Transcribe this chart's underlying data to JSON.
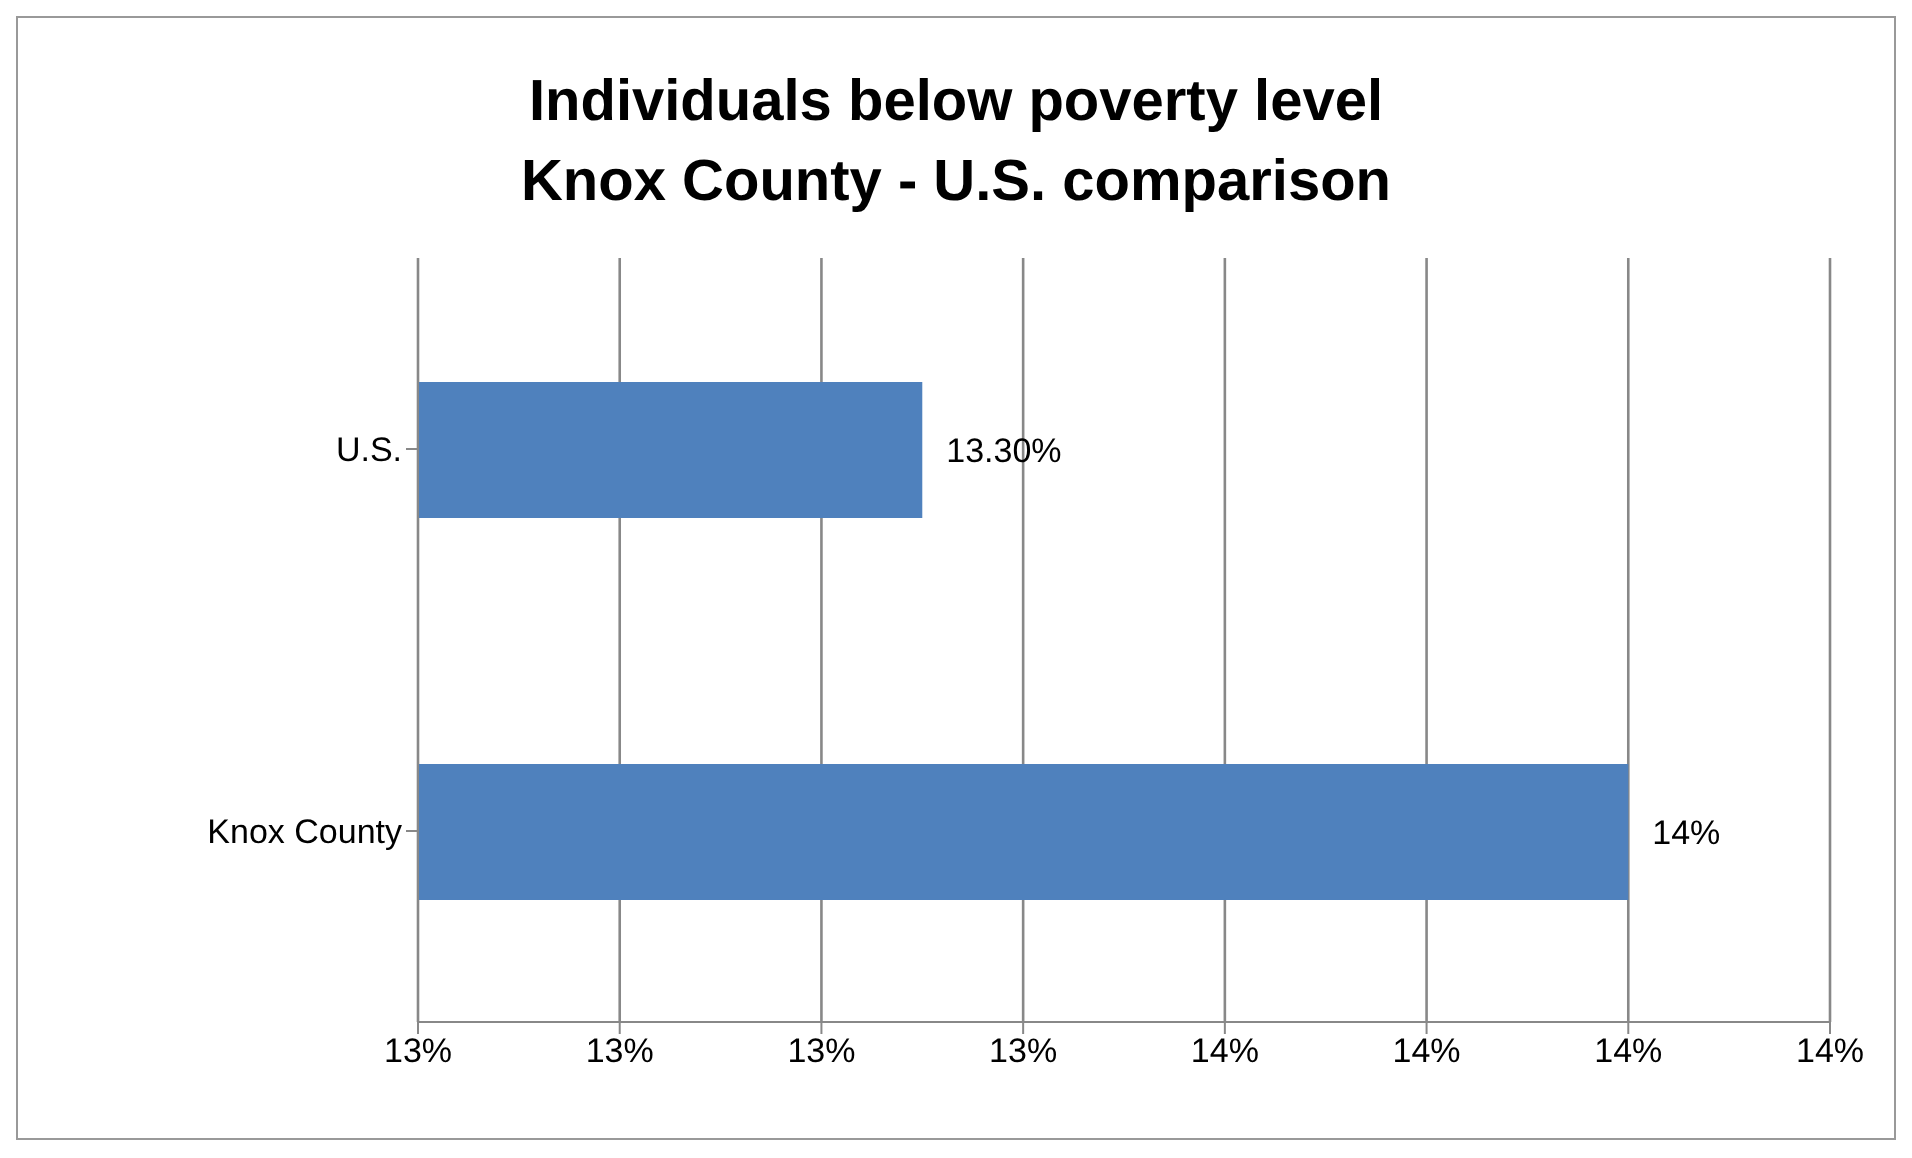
{
  "chart_data": {
    "type": "bar",
    "orientation": "horizontal",
    "title": "Individuals below poverty level",
    "subtitle": "Knox County - U.S. comparison",
    "categories": [
      "U.S.",
      "Knox County"
    ],
    "values": [
      13.3,
      14
    ],
    "value_labels": [
      "13.30%",
      "14%"
    ],
    "color": "#4f81bd",
    "xlim": [
      12.8,
      14.2
    ],
    "xticks": [
      {
        "value": 12.8,
        "label": "13%"
      },
      {
        "value": 13.0,
        "label": "13%"
      },
      {
        "value": 13.2,
        "label": "13%"
      },
      {
        "value": 13.4,
        "label": "13%"
      },
      {
        "value": 13.6,
        "label": "14%"
      },
      {
        "value": 13.8,
        "label": "14%"
      },
      {
        "value": 14.0,
        "label": "14%"
      },
      {
        "value": 14.2,
        "label": "14%"
      }
    ],
    "grid": "x"
  }
}
